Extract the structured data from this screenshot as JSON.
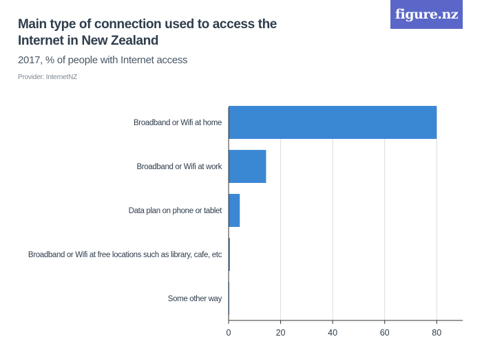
{
  "header": {
    "title": "Main type of connection used to access the Internet in New Zealand",
    "subtitle": "2017, % of people with Internet access",
    "provider": "Provider: InternetNZ",
    "logo_text": "figure.nz"
  },
  "colors": {
    "bar": "#3a87d4",
    "grid": "#dcdcdc",
    "axis": "#333333",
    "logo_bg": "#5a67c8"
  },
  "chart_data": {
    "type": "bar",
    "orientation": "horizontal",
    "categories": [
      "Broadband or Wifi at home",
      "Broadband or Wifi at work",
      "Data plan on phone or tablet",
      "Broadband or Wifi at free locations such as library, cafe, etc",
      "Some other way"
    ],
    "values": [
      80,
      14.4,
      4.3,
      0.5,
      0.2
    ],
    "xlim": [
      0,
      90
    ],
    "xticks": [
      0,
      20,
      40,
      60,
      80
    ],
    "grid": true,
    "title": "Main type of connection used to access the Internet in New Zealand",
    "xlabel": "",
    "ylabel": ""
  }
}
